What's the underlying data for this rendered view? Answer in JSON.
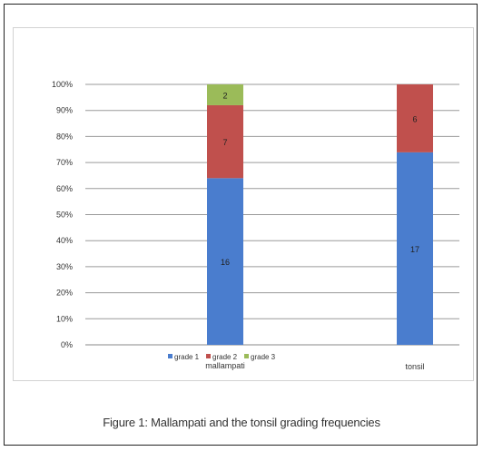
{
  "chart_data": {
    "type": "bar",
    "stacked": "percent",
    "categories": [
      "mallampati",
      "tonsil"
    ],
    "series": [
      {
        "name": "grade 1",
        "values": [
          16,
          17
        ],
        "color": "#4a7dce"
      },
      {
        "name": "grade 2",
        "values": [
          7,
          6
        ],
        "color": "#c0504d"
      },
      {
        "name": "grade 3",
        "values": [
          2,
          0
        ],
        "color": "#9bbb59"
      }
    ],
    "y_ticks": [
      "0%",
      "10%",
      "20%",
      "30%",
      "40%",
      "50%",
      "60%",
      "70%",
      "80%",
      "90%",
      "100%"
    ],
    "ylim": [
      0,
      100
    ],
    "grid": true,
    "legend_position": "bottom"
  },
  "caption": "Figure 1: Mallampati and the tonsil grading frequencies"
}
